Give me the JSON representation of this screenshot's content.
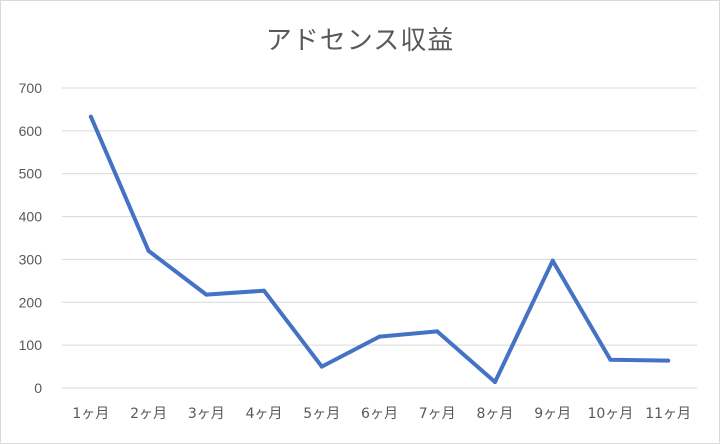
{
  "chart_data": {
    "type": "line",
    "title": "アドセンス収益",
    "xlabel": "",
    "ylabel": "",
    "categories": [
      "1ヶ月",
      "2ヶ月",
      "3ヶ月",
      "4ヶ月",
      "5ヶ月",
      "6ヶ月",
      "7ヶ月",
      "8ヶ月",
      "9ヶ月",
      "10ヶ月",
      "11ヶ月"
    ],
    "series": [
      {
        "values": [
          633,
          320,
          218,
          227,
          50,
          120,
          132,
          14,
          297,
          66,
          64
        ],
        "color": "#4472c4"
      }
    ],
    "ylim": [
      0,
      700
    ],
    "yticks": [
      0,
      100,
      200,
      300,
      400,
      500,
      600,
      700
    ],
    "grid": true,
    "legend": "none"
  }
}
